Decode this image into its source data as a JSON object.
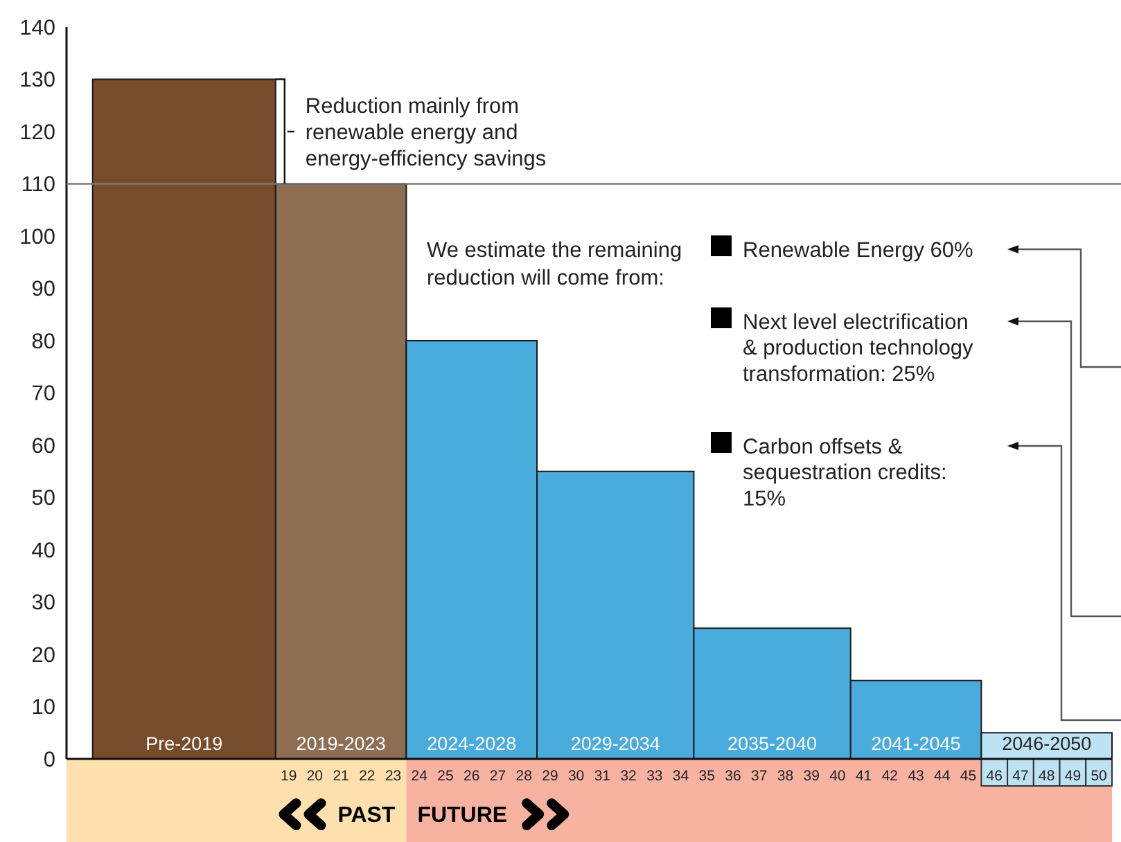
{
  "chart_data": {
    "type": "histogram",
    "bins": [
      11.5,
      18.5,
      23.5,
      28.5,
      34.5,
      40.5,
      45.5,
      50.5
    ],
    "values": [
      130,
      110,
      80,
      55,
      25,
      15,
      5
    ],
    "colors": [
      "#764c2a",
      "#8d6e52",
      "#49acdc",
      "#49acdc",
      "#49acdc",
      "#49acdc",
      "#bde2f3"
    ],
    "xlim": [
      10.5,
      50.5
    ],
    "xticks": [
      19,
      20,
      21,
      22,
      23,
      24,
      25,
      26,
      27,
      28,
      29,
      30,
      31,
      32,
      33,
      34,
      35,
      36,
      37,
      38,
      39,
      40,
      41,
      42,
      43,
      44,
      45,
      46,
      47,
      48,
      49,
      50
    ],
    "ylim": [
      0,
      140
    ],
    "yticks": [
      0,
      10,
      20,
      30,
      40,
      50,
      60,
      70,
      80,
      90,
      100,
      110,
      120,
      130,
      140
    ],
    "ref_lines": [
      {
        "axis": "y",
        "value": 110,
        "color": "#777777"
      }
    ],
    "annotations": [
      {
        "text": "Reduction mainly from\nrenewable energy and\nenergy-efficiency savings",
        "x": 18.5,
        "y": 120
      },
      "We estimate the remaining\nreduction will come from:",
      "Renewable Energy 60%",
      "Next level electrification\n& production technology\ntransformation: 25%",
      "Carbon offsets &\nsequestration credits:\n15%",
      "PAST",
      "FUTURE",
      {
        "text": "Pre-2019",
        "x": 15,
        "y": 0
      },
      {
        "text": "2019-2023",
        "x": 21,
        "y": 0
      },
      {
        "text": "2024-2028",
        "x": 26,
        "y": 0
      },
      {
        "text": "2029-2034",
        "x": 31.5,
        "y": 0
      },
      {
        "text": "2035-2040",
        "x": 37.5,
        "y": 0
      },
      {
        "text": "2041-2045",
        "x": 43,
        "y": 0
      },
      {
        "text": "2046-2050",
        "x": 48,
        "y": 0
      }
    ]
  }
}
